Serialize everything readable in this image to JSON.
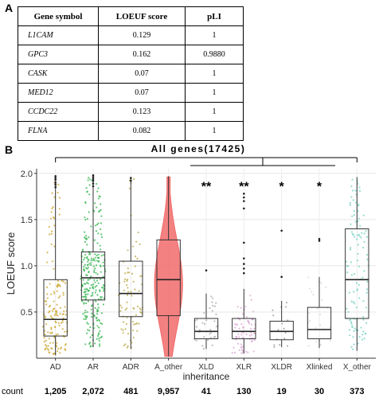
{
  "panel_a": {
    "label": "A",
    "headers": [
      "Gene symbol",
      "LOEUF score",
      "pLI"
    ],
    "rows": [
      [
        "L1CAM",
        "0.129",
        "1"
      ],
      [
        "GPC3",
        "0.162",
        "0.9880"
      ],
      [
        "CASK",
        "0.07",
        "1"
      ],
      [
        "MED12",
        "0.07",
        "1"
      ],
      [
        "CCDC22",
        "0.123",
        "1"
      ],
      [
        "FLNA",
        "0.082",
        "1"
      ]
    ]
  },
  "panel_b": {
    "label": "B",
    "count_label": "count",
    "counts": [
      "1,205",
      "2,072",
      "481",
      "9,957",
      "41",
      "130",
      "19",
      "30",
      "373"
    ]
  },
  "chart_data": {
    "type": "box",
    "title": "All genes(17425)",
    "xlabel": "inheritance",
    "ylabel": "LOEUF score",
    "ylim": [
      0,
      2.05
    ],
    "yticks": [
      0.5,
      1.0,
      1.5,
      2.0
    ],
    "grid": true,
    "categories": [
      "AD",
      "AR",
      "ADR",
      "A_other",
      "XLD",
      "XLR",
      "XLDR",
      "Xlinked",
      "X_other"
    ],
    "colors": [
      "#c9a227",
      "#2fb34a",
      "#b8a642",
      "#f26b6b",
      "#a8a8a8",
      "#d9a3cf",
      "#9a9a9a",
      "#d6d6d6",
      "#6fcfbf"
    ],
    "significance": [
      "",
      "",
      "",
      "",
      "**",
      "**",
      "*",
      "*",
      ""
    ],
    "boxes": [
      {
        "q1": 0.24,
        "median": 0.42,
        "q3": 0.85,
        "whisker_low": 0.03,
        "whisker_high": 1.96
      },
      {
        "q1": 0.63,
        "median": 0.87,
        "q3": 1.15,
        "whisker_low": 0.12,
        "whisker_high": 1.96
      },
      {
        "q1": 0.45,
        "median": 0.7,
        "q3": 1.05,
        "whisker_low": 0.1,
        "whisker_high": 1.95
      },
      {
        "q1": 0.46,
        "median": 0.85,
        "q3": 1.28,
        "whisker_low": 0.02,
        "whisker_high": 1.97
      },
      {
        "q1": 0.21,
        "median": 0.29,
        "q3": 0.43,
        "whisker_low": 0.1,
        "whisker_high": 0.7
      },
      {
        "q1": 0.21,
        "median": 0.29,
        "q3": 0.43,
        "whisker_low": 0.05,
        "whisker_high": 0.75
      },
      {
        "q1": 0.2,
        "median": 0.29,
        "q3": 0.4,
        "whisker_low": 0.12,
        "whisker_high": 0.62
      },
      {
        "q1": 0.21,
        "median": 0.31,
        "q3": 0.55,
        "whisker_low": 0.11,
        "whisker_high": 0.88
      },
      {
        "q1": 0.43,
        "median": 0.85,
        "q3": 1.4,
        "whisker_low": 0.08,
        "whisker_high": 1.96
      }
    ],
    "outliers": [
      [
        1.85,
        1.88,
        1.9,
        1.93,
        1.95,
        1.97
      ],
      [
        1.86,
        1.89,
        1.92,
        1.94,
        1.96,
        1.98
      ],
      [
        1.92,
        1.95
      ],
      [],
      [
        0.95
      ],
      [
        0.92,
        0.97,
        1.02,
        1.08,
        1.25,
        1.62,
        1.7,
        1.74,
        1.78
      ],
      [
        0.88,
        1.38
      ],
      [
        1.27,
        1.29
      ],
      []
    ]
  }
}
